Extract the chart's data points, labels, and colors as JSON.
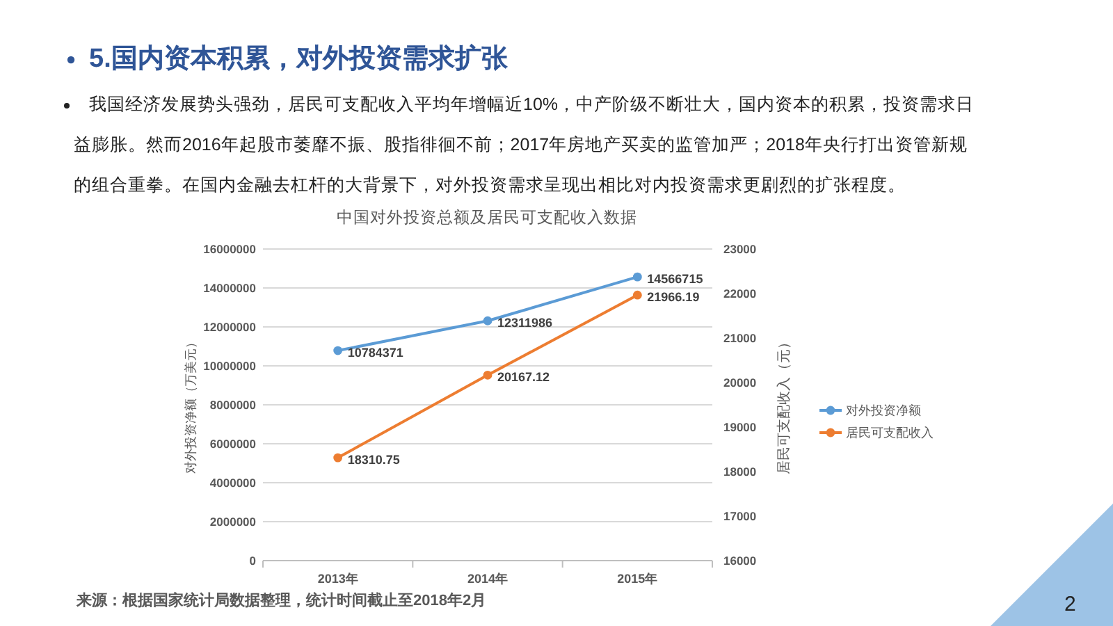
{
  "chart_data": {
    "type": "line",
    "title": "中国对外投资总额及居民可支配收入数据",
    "ylabel": "对外投资净额（万美元）",
    "y2label": "居民可支配收入（元）",
    "categories": [
      "2013年",
      "2014年",
      "2015年"
    ],
    "series": [
      {
        "name": "对外投资净额",
        "color": "#5b9bd5",
        "values": [
          10784371,
          12311986,
          14566715
        ]
      },
      {
        "name": "居民可支配收入",
        "color": "#ed7d31",
        "values": [
          18310.75,
          20167.12,
          21966.19
        ],
        "axis": "y2"
      }
    ],
    "ylim": [
      0,
      16000000
    ],
    "yticks": [
      0,
      2000000,
      4000000,
      6000000,
      8000000,
      10000000,
      12000000,
      14000000,
      16000000
    ],
    "y2lim": [
      16000,
      23000
    ],
    "y2ticks": [
      16000,
      17000,
      18000,
      19000,
      20000,
      21000,
      22000,
      23000
    ],
    "data_labels": true,
    "grid": "y",
    "legend": "right",
    "marker": "circle",
    "annotations": [
      "5.国内资本积累，对外投资需求扩张",
      "我国经济发展势头强劲，居民可支配收入平均年增幅近10%，中产阶级不断壮大，国内资本的积累，投资需求日益膨胀。然而2016年起股市萎靡不振、股指徘徊不前；2017年房地产买卖的监管加严；2018年央行打出资管新规的组合重拳。在国内金融去杠杆的大背景下，对外投资需求呈现出相比对内投资需求更剧烈的扩张程度。",
      "来源：根据国家统计局数据整理，统计时间截止至2018年2月",
      "2"
    ]
  }
}
